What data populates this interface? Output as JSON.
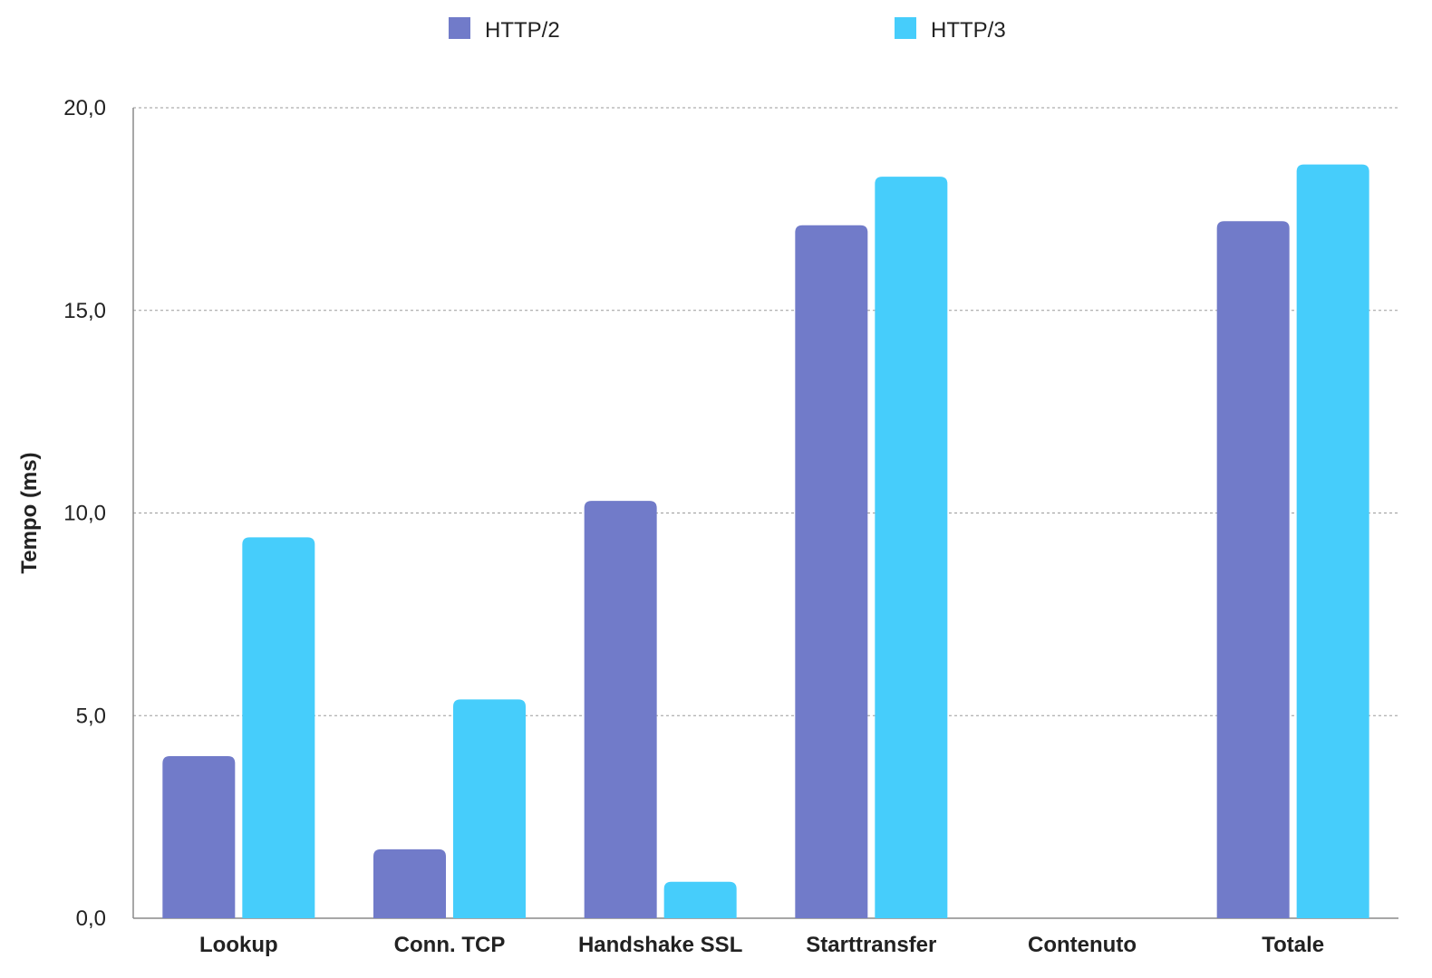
{
  "chart_data": {
    "type": "bar",
    "categories": [
      "Lookup",
      "Conn. TCP",
      "Handshake SSL",
      "Starttransfer",
      "Contenuto",
      "Totale"
    ],
    "series": [
      {
        "name": "HTTP/2",
        "color": "#717bc9",
        "values": [
          4.0,
          1.7,
          10.3,
          17.1,
          0.0,
          17.2
        ]
      },
      {
        "name": "HTTP/3",
        "color": "#46cdfb",
        "values": [
          9.4,
          5.4,
          0.9,
          18.3,
          0.0,
          18.6
        ]
      }
    ],
    "ylabel": "Tempo (ms)",
    "xlabel": "",
    "ylim": [
      0,
      20
    ],
    "yticks": [
      "0,0",
      "5,0",
      "10,0",
      "15,0",
      "20,0"
    ],
    "ytick_values": [
      0,
      5,
      10,
      15,
      20
    ],
    "grid": true,
    "legend_position": "top"
  }
}
